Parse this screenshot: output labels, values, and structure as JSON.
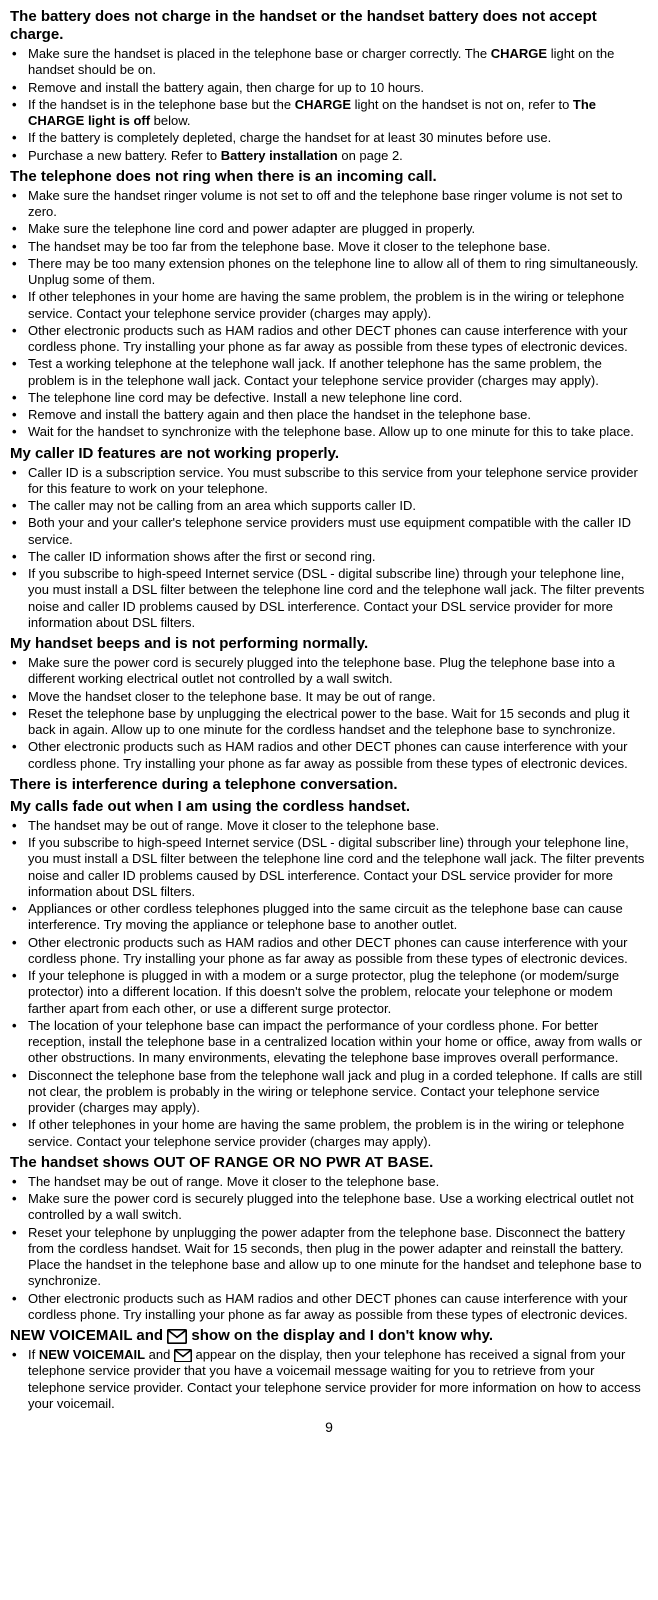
{
  "sections": [
    {
      "title": "The battery does not charge in the handset or the handset battery does not accept charge.",
      "title2": null,
      "items": [
        [
          {
            "t": "Make sure the handset is placed in the telephone base or charger correctly. The "
          },
          {
            "b": "CHARGE"
          },
          {
            "t": " light on the handset should be on."
          }
        ],
        [
          {
            "t": "Remove and install the battery again, then charge for up to 10 hours."
          }
        ],
        [
          {
            "t": "If the handset is in the telephone base but the "
          },
          {
            "b": "CHARGE"
          },
          {
            "t": " light on the handset is not on, refer to "
          },
          {
            "b": "The CHARGE light is off"
          },
          {
            "t": " below."
          }
        ],
        [
          {
            "t": "If the battery is completely depleted, charge the handset for at least 30 minutes before use."
          }
        ],
        [
          {
            "t": "Purchase a new battery. Refer to "
          },
          {
            "b": "Battery installation"
          },
          {
            "t": " on page 2."
          }
        ]
      ]
    },
    {
      "title": "The telephone does not ring when there is an incoming call.",
      "title2": null,
      "items": [
        [
          {
            "t": "Make sure the handset ringer volume is not set to off and the telephone base ringer volume is not set to zero."
          }
        ],
        [
          {
            "t": "Make sure the telephone line cord and power adapter are plugged in properly."
          }
        ],
        [
          {
            "t": "The handset may be too far from the telephone base. Move it closer to the telephone base."
          }
        ],
        [
          {
            "t": "There may be too many extension phones on the telephone line to allow all of them to ring simultaneously. Unplug some of them."
          }
        ],
        [
          {
            "t": "If other telephones in your home are having the same problem, the problem is in the wiring or telephone service. Contact your telephone service provider (charges may apply)."
          }
        ],
        [
          {
            "t": "Other electronic products such as HAM radios and other DECT phones can cause interference with your cordless phone. Try installing your phone as far away as possible from these types of electronic devices."
          }
        ],
        [
          {
            "t": "Test a working telephone at the telephone wall jack. If another telephone has the same problem, the problem is in the telephone wall jack. Contact your telephone service provider (charges may apply)."
          }
        ],
        [
          {
            "t": "The telephone line cord may be defective. Install a new telephone line cord."
          }
        ],
        [
          {
            "t": "Remove and install the battery again and then place the handset in the telephone base."
          }
        ],
        [
          {
            "t": "Wait for the handset to synchronize with the telephone base. Allow up to one minute for this to take place."
          }
        ]
      ]
    },
    {
      "title": "My caller ID features are not working properly.",
      "title2": null,
      "items": [
        [
          {
            "t": "Caller ID is a subscription service. You must subscribe to this service from your telephone service provider for this feature to work on your telephone."
          }
        ],
        [
          {
            "t": "The caller may not be calling from an area which supports caller ID."
          }
        ],
        [
          {
            "t": "Both your and your caller's telephone service providers must use equipment compatible with the caller ID service."
          }
        ],
        [
          {
            "t": "The caller ID information shows after the first or second ring."
          }
        ],
        [
          {
            "t": "If you subscribe to high-speed Internet service (DSL - digital subscribe line) through your telephone line, you must install a DSL filter between the telephone line cord and the telephone wall jack. The filter prevents noise and caller ID problems caused by DSL interference. Contact your DSL service provider for more information about DSL filters."
          }
        ]
      ]
    },
    {
      "title": "My handset beeps and is not performing normally.",
      "title2": null,
      "items": [
        [
          {
            "t": "Make sure the power cord is securely plugged into the telephone base. Plug the telephone base into a different working electrical outlet not controlled by a wall switch."
          }
        ],
        [
          {
            "t": "Move the handset closer to the telephone base. It may be out of range."
          }
        ],
        [
          {
            "t": "Reset the telephone base by unplugging the electrical power to the base. Wait for 15 seconds and plug it back in again. Allow up to one minute for the cordless handset and the telephone base to synchronize."
          }
        ],
        [
          {
            "t": "Other electronic products such as HAM radios and other DECT phones can cause interference with your cordless phone. Try installing your phone as far away as possible from these types of electronic devices."
          }
        ]
      ]
    },
    {
      "title": "There is interference during a telephone conversation.",
      "title2": "My calls fade out when I am using the cordless handset.",
      "items": [
        [
          {
            "t": "The handset may be out of range. Move it closer to the telephone base."
          }
        ],
        [
          {
            "t": "If you subscribe to high-speed Internet service (DSL - digital subscriber line) through your telephone line, you must install a DSL filter between the telephone line cord and the telephone wall jack. The filter prevents noise and caller ID problems caused by DSL interference. Contact your DSL service provider for more information about DSL filters."
          }
        ],
        [
          {
            "t": "Appliances or other cordless telephones plugged into the same circuit as the telephone base can cause interference. Try moving the appliance or telephone base to another outlet."
          }
        ],
        [
          {
            "t": "Other electronic products such as HAM radios and other DECT phones can cause interference with your cordless phone. Try installing your phone as far away as possible from these types of electronic devices."
          }
        ],
        [
          {
            "t": "If your telephone is plugged in with a modem or a surge protector, plug the telephone (or modem/surge protector) into a different location. If this doesn't solve the problem, relocate your telephone or modem farther apart from each other, or use a different surge protector."
          }
        ],
        [
          {
            "t": "The location of your telephone base can impact the performance of your cordless phone. For better reception, install the telephone base in a centralized location within your home or office, away from walls or other obstructions. In many environments, elevating the telephone base improves overall performance."
          }
        ],
        [
          {
            "t": "Disconnect the telephone base from the telephone wall jack and plug in a corded telephone. If calls are still not clear, the problem is probably in the wiring or telephone service. Contact your telephone service provider (charges may apply)."
          }
        ],
        [
          {
            "t": "If other telephones in your home are having the same problem, the problem is in the wiring or telephone service. Contact your telephone service provider (charges may apply)."
          }
        ]
      ]
    },
    {
      "title": "The handset shows OUT OF RANGE OR NO PWR AT BASE.",
      "title2": null,
      "items": [
        [
          {
            "t": "The handset may be out of range. Move it closer to the telephone base."
          }
        ],
        [
          {
            "t": "Make sure the power cord is securely plugged into the telephone base. Use a working electrical outlet not controlled by a wall switch."
          }
        ],
        [
          {
            "t": "Reset your telephone by unplugging the power adapter from the telephone base. Disconnect the battery from the cordless handset. Wait for 15 seconds, then plug in the power adapter and reinstall the battery. Place the handset in the telephone base and allow up to one minute for the handset and telephone base to synchronize."
          }
        ],
        [
          {
            "t": "Other electronic products such as HAM radios and other DECT phones can cause interference with your cordless phone. Try installing your phone as far away as possible from these types of electronic devices."
          }
        ]
      ]
    },
    {
      "title": "NEW VOICEMAIL and {mail} show on the display and I don't know why.",
      "title2": null,
      "items": [
        [
          {
            "t": "If "
          },
          {
            "b": "NEW VOICEMAIL"
          },
          {
            "t": " and "
          },
          {
            "mail": true
          },
          {
            "t": " appear on the display, then your telephone has received a signal from your telephone service provider that you have a voicemail message waiting for you to retrieve from your telephone service provider. Contact your telephone service provider for more information on how to access your voicemail."
          }
        ]
      ]
    }
  ],
  "pageNumber": "9"
}
